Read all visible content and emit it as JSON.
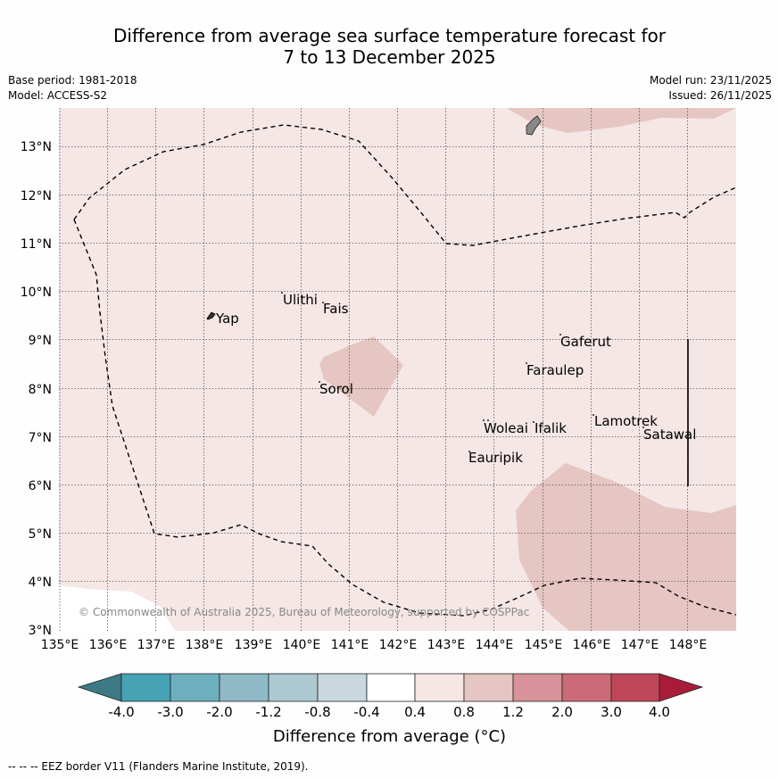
{
  "title": {
    "line1": "Difference from average sea surface temperature forecast for",
    "line2": "7 to 13 December 2025"
  },
  "meta": {
    "base_period": "Base period: 1981-2018",
    "model": "Model: ACCESS-S2",
    "model_run": "Model run: 23/11/2025",
    "issued": "Issued: 26/11/2025"
  },
  "map": {
    "lon_range": [
      135,
      149
    ],
    "lat_range": [
      3,
      13.8
    ],
    "lon_ticks": [
      "135°E",
      "136°E",
      "137°E",
      "138°E",
      "139°E",
      "140°E",
      "141°E",
      "142°E",
      "143°E",
      "144°E",
      "145°E",
      "146°E",
      "147°E",
      "148°E"
    ],
    "lat_ticks": [
      "3°N",
      "4°N",
      "5°N",
      "6°N",
      "7°N",
      "8°N",
      "9°N",
      "10°N",
      "11°N",
      "12°N",
      "13°N"
    ],
    "places": [
      "Ulithi",
      "Fais",
      "Yap",
      "Gaferut",
      "Faraulep",
      "Sorol",
      "Woleai",
      "Ifalik",
      "Lamotrek",
      "Satawal",
      "Eauripik"
    ],
    "copyright": "© Commonwealth of Australia 2025, Bureau of Meteorology, supported by COSPPac",
    "colors": {
      "background_fill": "#f4e7e6",
      "warm_patch": "#e6c6c2",
      "land": "#888888"
    }
  },
  "colorbar": {
    "labels": [
      "-4.0",
      "-3.0",
      "-2.0",
      "-1.2",
      "-0.8",
      "-0.4",
      "0.4",
      "0.8",
      "1.2",
      "2.0",
      "3.0",
      "4.0"
    ],
    "colors": [
      "#3c7a86",
      "#46a2b4",
      "#6eafbe",
      "#8fb9c6",
      "#acc8d0",
      "#c9d8dd",
      "#ffffff",
      "#f4e7e6",
      "#e6c6c2",
      "#d8929a",
      "#cc6b78",
      "#bf4658",
      "#a81c3a"
    ],
    "title": "Difference from average (°C)"
  },
  "footnote": "-- -- -- EEZ border V11 (Flanders Marine Institute, 2019)."
}
